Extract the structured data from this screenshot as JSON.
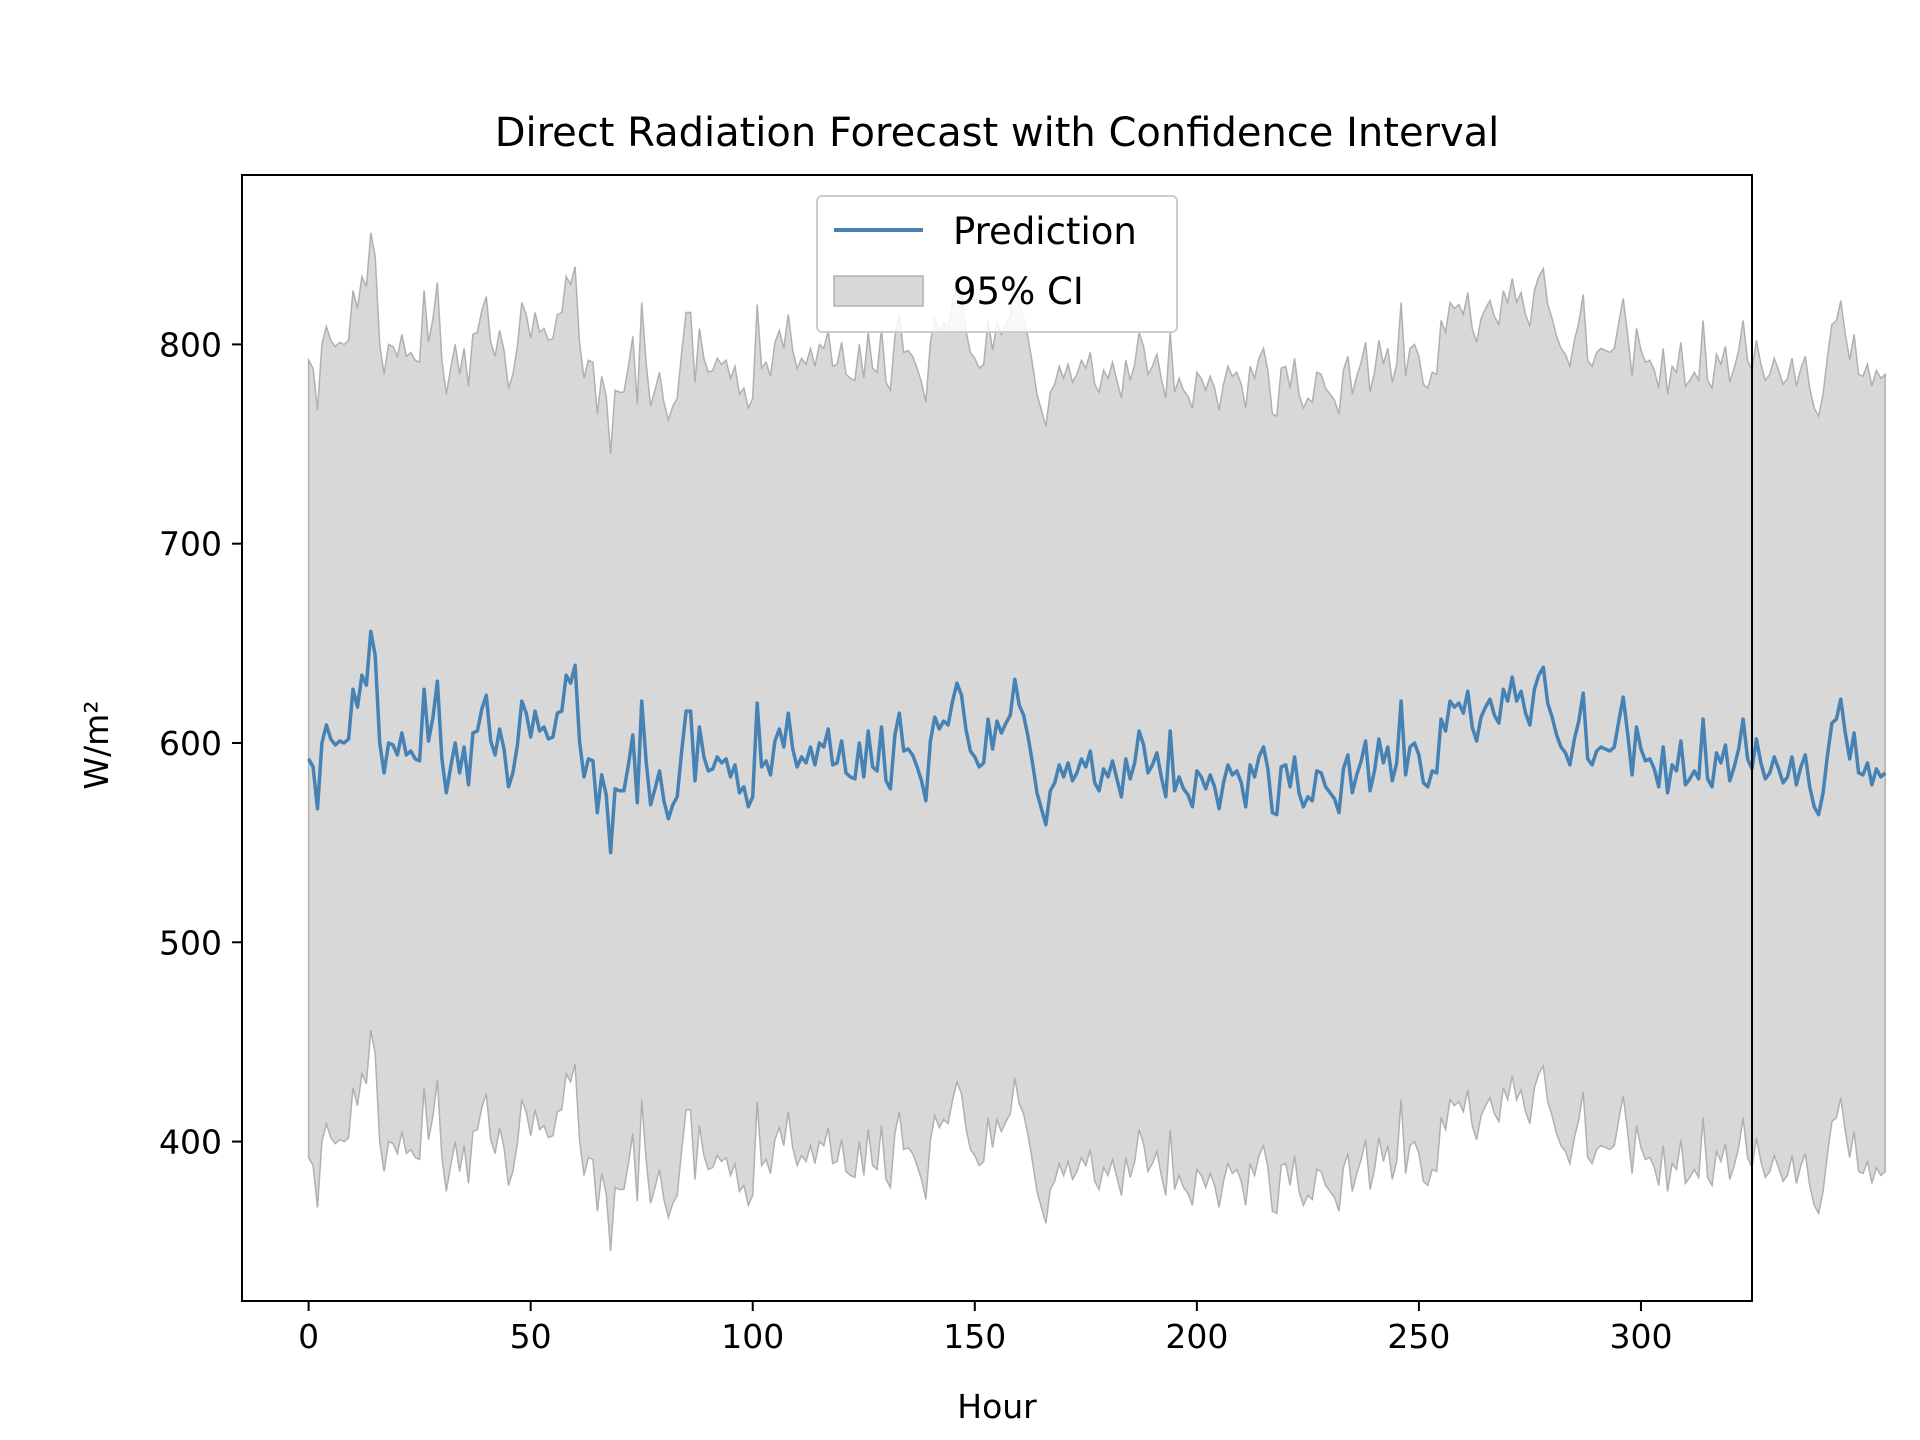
{
  "chart_data": {
    "type": "line",
    "title": "Direct Radiation Forecast with Confidence Interval",
    "xlabel": "Hour",
    "ylabel": "W/m²",
    "xlim": [
      -15,
      325
    ],
    "ylim": [
      320,
      885
    ],
    "xticks": [
      0,
      50,
      100,
      150,
      200,
      250,
      300
    ],
    "xtick_labels": [
      "0",
      "50",
      "100",
      "150",
      "200",
      "250",
      "300"
    ],
    "yticks": [
      400,
      500,
      600,
      700,
      800
    ],
    "ytick_labels": [
      "400",
      "500",
      "600",
      "700",
      "800"
    ],
    "grid": false,
    "legend_position": "upper center",
    "ci_half_width": 200,
    "series": [
      {
        "name": "Prediction",
        "kind": "line",
        "color": "#4682b4",
        "x_start": 0,
        "x_step": 1,
        "values": [
          592,
          588,
          567,
          600,
          609,
          602,
          599,
          601,
          600,
          602,
          627,
          618,
          634,
          629,
          656,
          644,
          600,
          585,
          600,
          599,
          594,
          605,
          594,
          596,
          592,
          591,
          627,
          601,
          613,
          631,
          592,
          575,
          588,
          600,
          585,
          598,
          579,
          605,
          606,
          617,
          624,
          601,
          594,
          607,
          597,
          578,
          585,
          599,
          621,
          615,
          603,
          616,
          606,
          608,
          602,
          603,
          615,
          616,
          634,
          630,
          639,
          601,
          583,
          592,
          591,
          565,
          584,
          574,
          545,
          577,
          576,
          576,
          589,
          604,
          570,
          621,
          591,
          569,
          577,
          586,
          571,
          562,
          569,
          573,
          596,
          616,
          616,
          581,
          608,
          593,
          586,
          587,
          593,
          590,
          592,
          583,
          589,
          575,
          578,
          568,
          573,
          620,
          588,
          591,
          584,
          601,
          607,
          598,
          615,
          597,
          588,
          593,
          590,
          598,
          589,
          600,
          598,
          607,
          589,
          590,
          601,
          585,
          583,
          582,
          600,
          583,
          606,
          588,
          586,
          608,
          581,
          577,
          604,
          615,
          596,
          597,
          594,
          588,
          581,
          571,
          601,
          613,
          607,
          611,
          609,
          621,
          630,
          624,
          607,
          596,
          593,
          588,
          590,
          612,
          597,
          611,
          605,
          610,
          614,
          632,
          619,
          614,
          603,
          590,
          575,
          567,
          559,
          576,
          580,
          589,
          583,
          590,
          581,
          585,
          592,
          588,
          596,
          580,
          576,
          587,
          583,
          591,
          582,
          573,
          592,
          582,
          590,
          606,
          599,
          585,
          589,
          595,
          583,
          573,
          606,
          576,
          583,
          577,
          574,
          568,
          586,
          583,
          577,
          584,
          578,
          567,
          580,
          589,
          584,
          586,
          580,
          568,
          589,
          583,
          593,
          598,
          587,
          565,
          564,
          588,
          589,
          578,
          593,
          575,
          568,
          573,
          571,
          586,
          585,
          578,
          575,
          572,
          565,
          587,
          594,
          575,
          584,
          591,
          601,
          576,
          586,
          602,
          590,
          598,
          581,
          590,
          621,
          584,
          598,
          600,
          594,
          580,
          578,
          586,
          585,
          612,
          606,
          621,
          618,
          620,
          615,
          626,
          608,
          601,
          613,
          618,
          622,
          614,
          610,
          627,
          621,
          633,
          621,
          626,
          615,
          609,
          627,
          634,
          638,
          620,
          613,
          604,
          598,
          595,
          589,
          602,
          611,
          625,
          592,
          589,
          596,
          598,
          597,
          596,
          598,
          611,
          623,
          605,
          584,
          608,
          597,
          591,
          592,
          587,
          578,
          598,
          575,
          589,
          586,
          601,
          579,
          582,
          586,
          582,
          612,
          582,
          578,
          595,
          590,
          599,
          581,
          588,
          597,
          612,
          592,
          587,
          602,
          590,
          582,
          585,
          593,
          587,
          580,
          583,
          593,
          579,
          588,
          594,
          578,
          568,
          564,
          575,
          594,
          610,
          612,
          622,
          605,
          592,
          605,
          585,
          584,
          590,
          579,
          587,
          583,
          585
        ]
      },
      {
        "name": "95% CI",
        "kind": "band",
        "color": "#d8d8d8",
        "edge_color": "#b0b0b0"
      }
    ]
  }
}
